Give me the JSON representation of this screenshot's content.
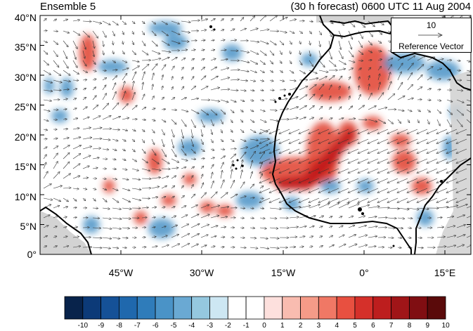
{
  "title_left": "Ensemble 5",
  "title_right": "(30 h forecast) 0600 UTC 11 Aug 2004",
  "y_ticks": [
    "40°N",
    "35°N",
    "30°N",
    "25°N",
    "20°N",
    "15°N",
    "10°N",
    "5°N",
    "0°"
  ],
  "x_ticks": [
    "45°W",
    "30°W",
    "15°W",
    "0°",
    "15°E"
  ],
  "reference_vector": {
    "value": "10",
    "label": "Reference Vector"
  },
  "colorbar": {
    "labels": [
      "-10",
      "-9",
      "-8",
      "-7",
      "-6",
      "-5",
      "-4",
      "-3",
      "-2",
      "-1",
      "0",
      "1",
      "2",
      "3",
      "4",
      "5",
      "6",
      "7",
      "8",
      "9",
      "10"
    ],
    "colors": [
      "#08234b",
      "#0c3a78",
      "#155197",
      "#1f68ad",
      "#2f7cba",
      "#4a93c7",
      "#6aa9d3",
      "#95c8df",
      "#cde7f3",
      "#ffffff",
      "#ffffff",
      "#fde0dd",
      "#f9bcb0",
      "#f59b88",
      "#f07865",
      "#e85040",
      "#d5302a",
      "#bd1e1e",
      "#a01518",
      "#800e12",
      "#5a0a0a"
    ]
  },
  "colors": {
    "warm": "#e04030",
    "cool": "#4a93c7",
    "land_mask": "#d3d3d3"
  },
  "map": {
    "lon_range": [
      -60,
      20
    ],
    "lat_range": [
      0,
      40
    ]
  }
}
